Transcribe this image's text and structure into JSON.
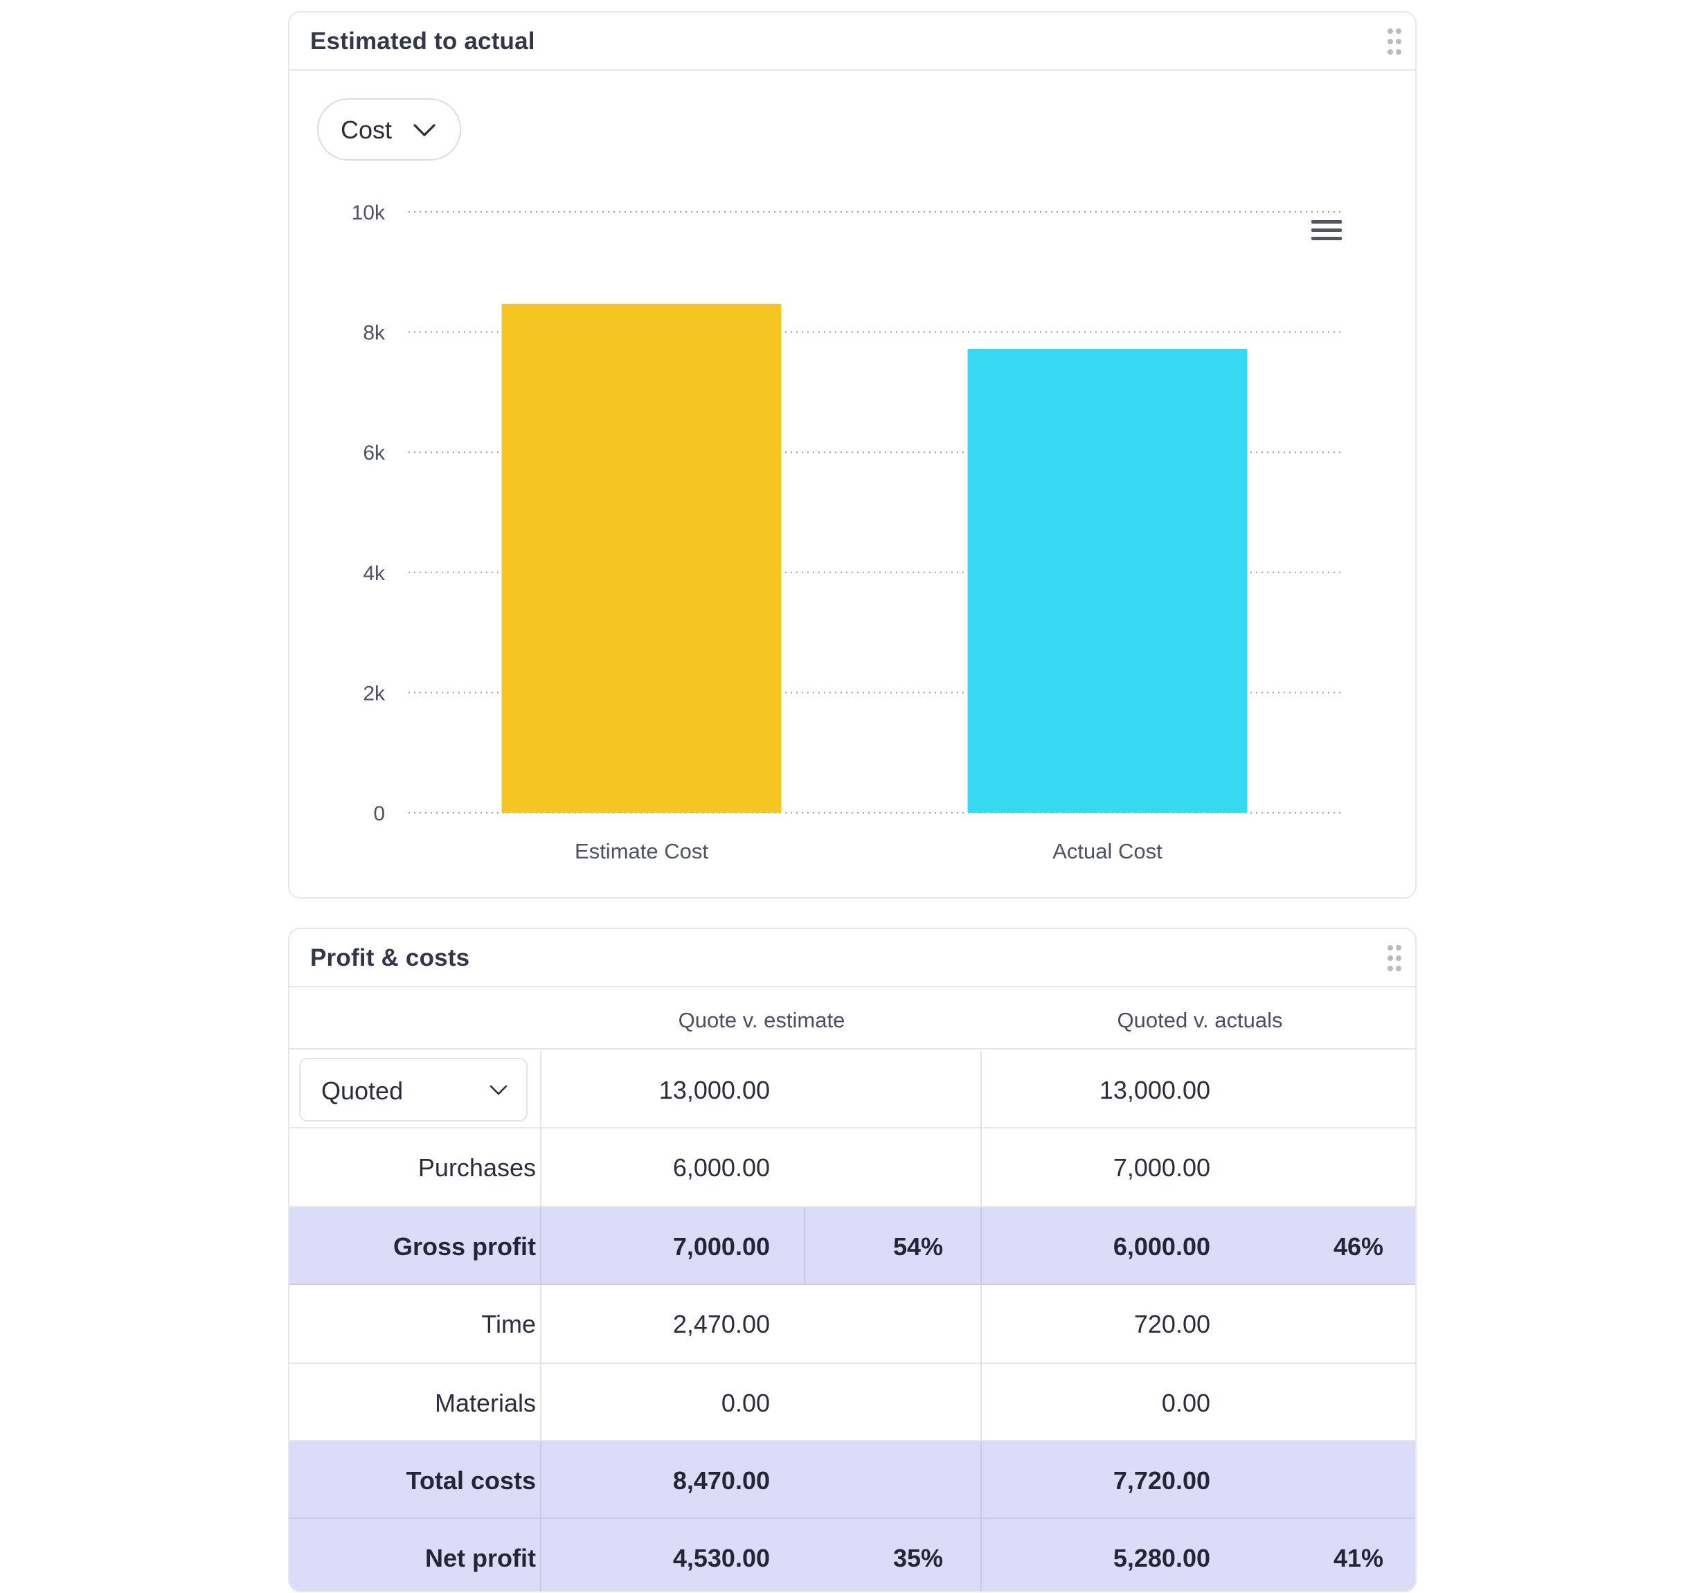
{
  "chart_card": {
    "title": "Estimated to actual",
    "dropdown": {
      "selected": "Cost"
    }
  },
  "chart_data": {
    "type": "bar",
    "categories": [
      "Estimate Cost",
      "Actual Cost"
    ],
    "values": [
      8470,
      7720
    ],
    "colors": [
      "#f5c621",
      "#36d9f1"
    ],
    "ylim": [
      0,
      10000
    ],
    "yticks": [
      0,
      2000,
      4000,
      6000,
      8000,
      10000
    ],
    "ytick_labels": [
      "0",
      "2k",
      "4k",
      "6k",
      "8k",
      "10k"
    ],
    "grid": true,
    "xlabel": "",
    "ylabel": ""
  },
  "table_card": {
    "title": "Profit & costs",
    "columns": [
      "Quote v. estimate",
      "Quoted v. actuals"
    ],
    "quoted_dropdown": {
      "selected": "Quoted"
    },
    "rows": [
      {
        "label": "",
        "estimate": "13,000.00",
        "estimate_pct": "",
        "actual": "13,000.00",
        "actual_pct": "",
        "highlight": false
      },
      {
        "label": "Purchases",
        "estimate": "6,000.00",
        "estimate_pct": "",
        "actual": "7,000.00",
        "actual_pct": "",
        "highlight": false
      },
      {
        "label": "Gross profit",
        "estimate": "7,000.00",
        "estimate_pct": "54%",
        "actual": "6,000.00",
        "actual_pct": "46%",
        "highlight": true
      },
      {
        "label": "Time",
        "estimate": "2,470.00",
        "estimate_pct": "",
        "actual": "720.00",
        "actual_pct": "",
        "highlight": false
      },
      {
        "label": "Materials",
        "estimate": "0.00",
        "estimate_pct": "",
        "actual": "0.00",
        "actual_pct": "",
        "highlight": false
      },
      {
        "label": "Total costs",
        "estimate": "8,470.00",
        "estimate_pct": "",
        "actual": "7,720.00",
        "actual_pct": "",
        "highlight": true
      },
      {
        "label": "Net profit",
        "estimate": "4,530.00",
        "estimate_pct": "35%",
        "actual": "5,280.00",
        "actual_pct": "41%",
        "highlight": true
      }
    ]
  },
  "icons": {
    "drag": "drag-handle-icon",
    "chevron": "chevron-down-icon",
    "menu": "hamburger-menu-icon"
  }
}
